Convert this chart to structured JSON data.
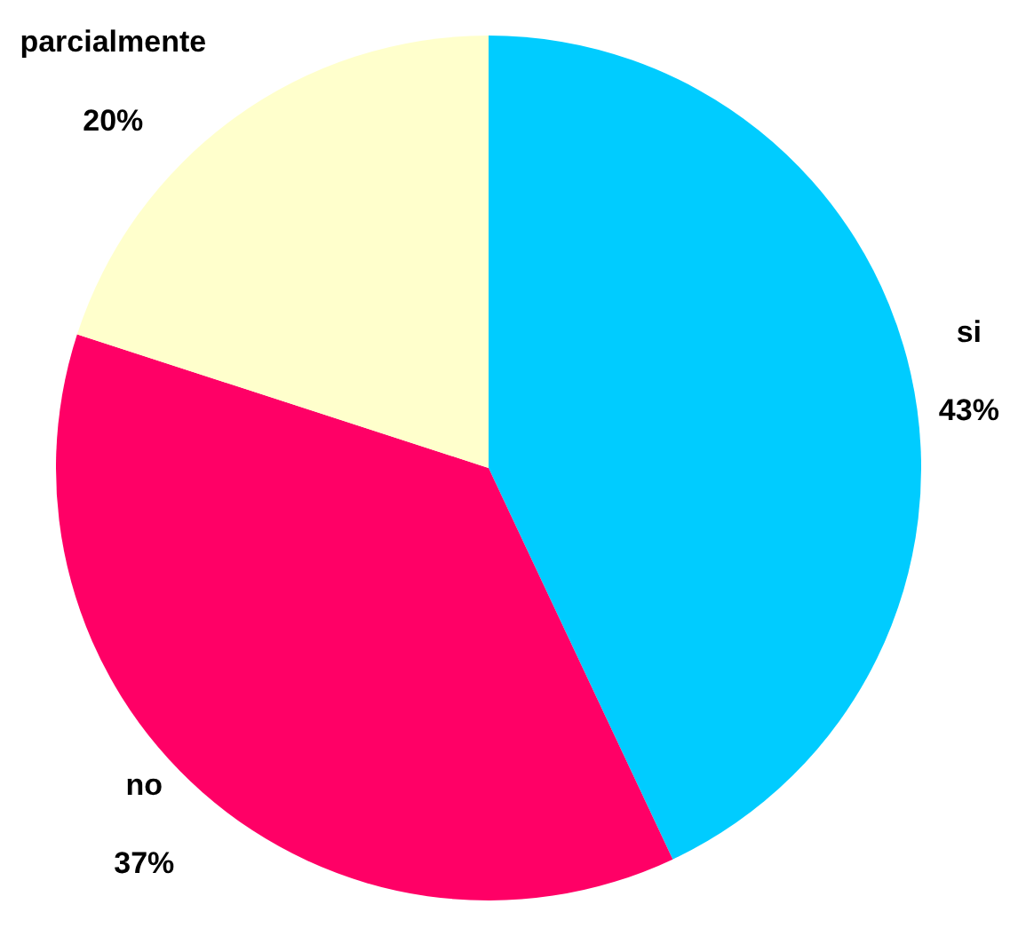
{
  "chart_data": {
    "type": "pie",
    "categories": [
      "si",
      "no",
      "parcialmente"
    ],
    "values": [
      43,
      37,
      20
    ],
    "value_labels": [
      "43%",
      "37%",
      "20%"
    ],
    "colors": [
      "#00ccff",
      "#ff0066",
      "#ffffcc"
    ],
    "legend": false
  }
}
